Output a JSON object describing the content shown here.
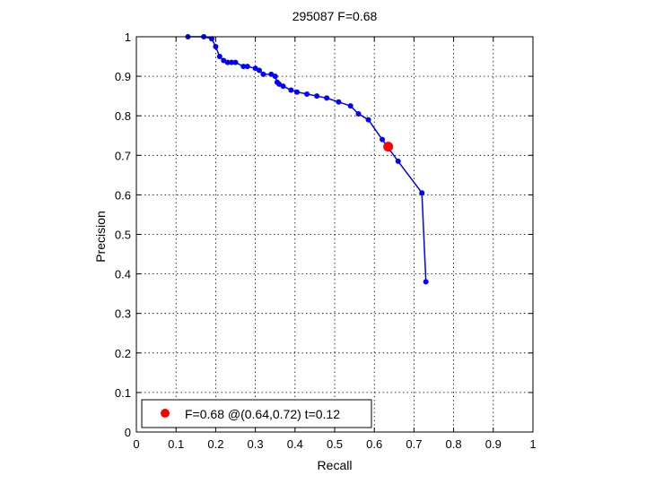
{
  "chart_data": {
    "type": "line",
    "title": "295087 F=0.68",
    "xlabel": "Recall",
    "ylabel": "Precision",
    "xlim": [
      0,
      1
    ],
    "ylim": [
      0,
      1
    ],
    "grid": true,
    "x_ticks": [
      "0",
      "0.1",
      "0.2",
      "0.3",
      "0.4",
      "0.5",
      "0.6",
      "0.7",
      "0.8",
      "0.9",
      "1"
    ],
    "y_ticks": [
      "0",
      "0.1",
      "0.2",
      "0.3",
      "0.4",
      "0.5",
      "0.6",
      "0.7",
      "0.8",
      "0.9",
      "1"
    ],
    "series": [
      {
        "color": "#0000ff",
        "x": [
          0.13,
          0.17,
          0.19,
          0.2,
          0.21,
          0.22,
          0.23,
          0.24,
          0.25,
          0.27,
          0.28,
          0.3,
          0.31,
          0.32,
          0.34,
          0.35,
          0.355,
          0.36,
          0.37,
          0.39,
          0.405,
          0.43,
          0.455,
          0.48,
          0.51,
          0.54,
          0.56,
          0.585,
          0.62,
          0.66,
          0.72,
          0.73
        ],
        "y": [
          1.0,
          1.0,
          0.995,
          0.975,
          0.95,
          0.94,
          0.935,
          0.935,
          0.935,
          0.925,
          0.925,
          0.92,
          0.915,
          0.905,
          0.905,
          0.9,
          0.885,
          0.88,
          0.875,
          0.865,
          0.86,
          0.855,
          0.85,
          0.845,
          0.835,
          0.825,
          0.805,
          0.79,
          0.74,
          0.685,
          0.605,
          0.38
        ]
      },
      {
        "color": "#ff0000",
        "legend": "F=0.68 @(0.64,0.72) t=0.12",
        "x": [
          0.635
        ],
        "y": [
          0.722
        ]
      }
    ]
  }
}
